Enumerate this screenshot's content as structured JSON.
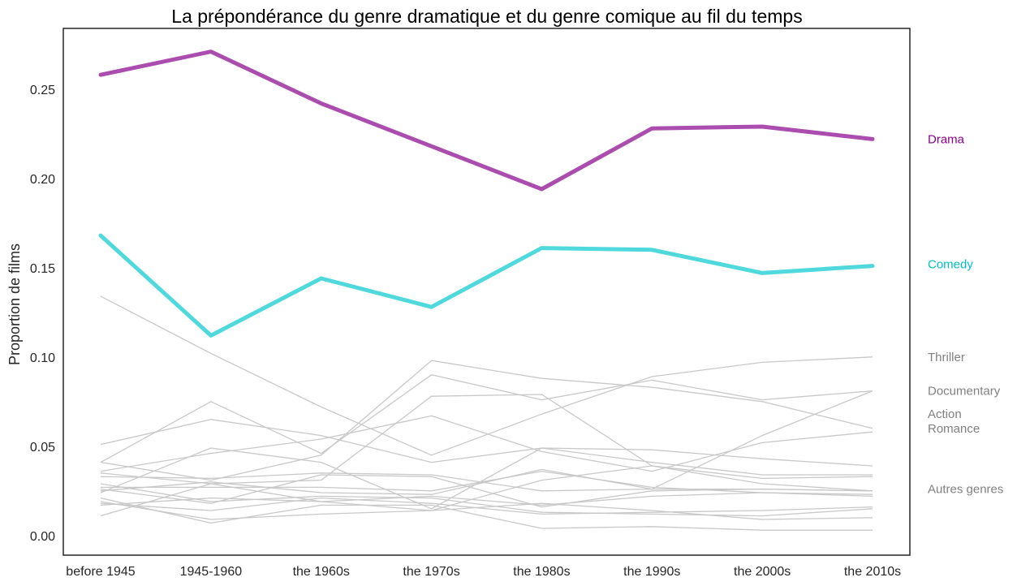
{
  "chart_data": {
    "type": "line",
    "title": "La prépondérance du genre dramatique et du genre comique au fil du temps",
    "xlabel": "",
    "ylabel": "Proportion de films",
    "categories": [
      "before 1945",
      "1945-1960",
      "the 1960s",
      "the 1970s",
      "the 1980s",
      "the 1990s",
      "the 2000s",
      "the 2010s"
    ],
    "ylim": [
      -0.011,
      0.284
    ],
    "yticks": [
      0.0,
      0.05,
      0.1,
      0.15,
      0.2,
      0.25
    ],
    "ytick_labels": [
      "0.00",
      "0.05",
      "0.10",
      "0.15",
      "0.20",
      "0.25"
    ],
    "grid": false,
    "highlight_series": [
      {
        "name": "Drama",
        "color": "#aa4daf",
        "label_color": "#8b008b",
        "values": [
          0.258,
          0.271,
          0.242,
          0.218,
          0.194,
          0.228,
          0.229,
          0.222
        ]
      },
      {
        "name": "Comedy",
        "color": "#4fd9dc",
        "label_color": "#00bfc4",
        "values": [
          0.168,
          0.112,
          0.144,
          0.128,
          0.161,
          0.16,
          0.147,
          0.151
        ]
      }
    ],
    "background_series_color": "#c8c8c8",
    "background_series": [
      {
        "values": [
          0.134,
          0.102,
          0.072,
          0.045,
          0.068,
          0.089,
          0.097,
          0.1
        ]
      },
      {
        "values": [
          0.041,
          0.031,
          0.045,
          0.098,
          0.088,
          0.083,
          0.075,
          0.06
        ]
      },
      {
        "values": [
          0.024,
          0.049,
          0.041,
          0.015,
          0.049,
          0.048,
          0.043,
          0.039
        ]
      },
      {
        "values": [
          0.036,
          0.046,
          0.054,
          0.067,
          0.047,
          0.036,
          0.052,
          0.058
        ]
      },
      {
        "values": [
          0.041,
          0.075,
          0.046,
          0.09,
          0.076,
          0.087,
          0.076,
          0.081
        ]
      },
      {
        "values": [
          0.051,
          0.065,
          0.056,
          0.041,
          0.049,
          0.041,
          0.034,
          0.034
        ]
      },
      {
        "values": [
          0.033,
          0.032,
          0.035,
          0.034,
          0.025,
          0.026,
          0.026,
          0.025
        ]
      },
      {
        "values": [
          0.018,
          0.014,
          0.021,
          0.018,
          0.012,
          0.013,
          0.014,
          0.016
        ]
      },
      {
        "values": [
          0.027,
          0.027,
          0.027,
          0.025,
          0.036,
          0.027,
          0.024,
          0.022
        ]
      },
      {
        "values": [
          0.011,
          0.029,
          0.031,
          0.078,
          0.079,
          0.039,
          0.032,
          0.033
        ]
      },
      {
        "values": [
          0.029,
          0.019,
          0.022,
          0.021,
          0.013,
          0.012,
          0.011,
          0.015
        ]
      },
      {
        "values": [
          0.017,
          0.021,
          0.019,
          0.022,
          0.017,
          0.022,
          0.024,
          0.023
        ]
      },
      {
        "values": [
          0.035,
          0.029,
          0.019,
          0.014,
          0.031,
          0.039,
          0.029,
          0.025
        ]
      },
      {
        "values": [
          0.021,
          0.007,
          0.017,
          0.017,
          0.004,
          0.005,
          0.003,
          0.003
        ]
      },
      {
        "values": [
          0.019,
          0.009,
          0.012,
          0.014,
          0.018,
          0.014,
          0.009,
          0.01
        ]
      },
      {
        "values": [
          0.025,
          0.03,
          0.024,
          0.023,
          0.037,
          0.026,
          0.056,
          0.081
        ]
      },
      {
        "values": [
          0.026,
          0.018,
          0.034,
          0.033,
          0.016,
          0.025,
          0.026,
          0.025
        ]
      }
    ],
    "end_labels": [
      {
        "text": "Drama",
        "value": 0.222,
        "color": "#8b008b"
      },
      {
        "text": "Comedy",
        "value": 0.152,
        "color": "#00bfc4"
      },
      {
        "text": "Thriller",
        "value": 0.1,
        "color": "#808080"
      },
      {
        "text": "Documentary",
        "value": 0.081,
        "color": "#808080"
      },
      {
        "text": "Action",
        "value": 0.068,
        "color": "#808080"
      },
      {
        "text": "Romance",
        "value": 0.06,
        "color": "#808080"
      },
      {
        "text": "Autres genres",
        "value": 0.026,
        "color": "#808080"
      }
    ]
  }
}
